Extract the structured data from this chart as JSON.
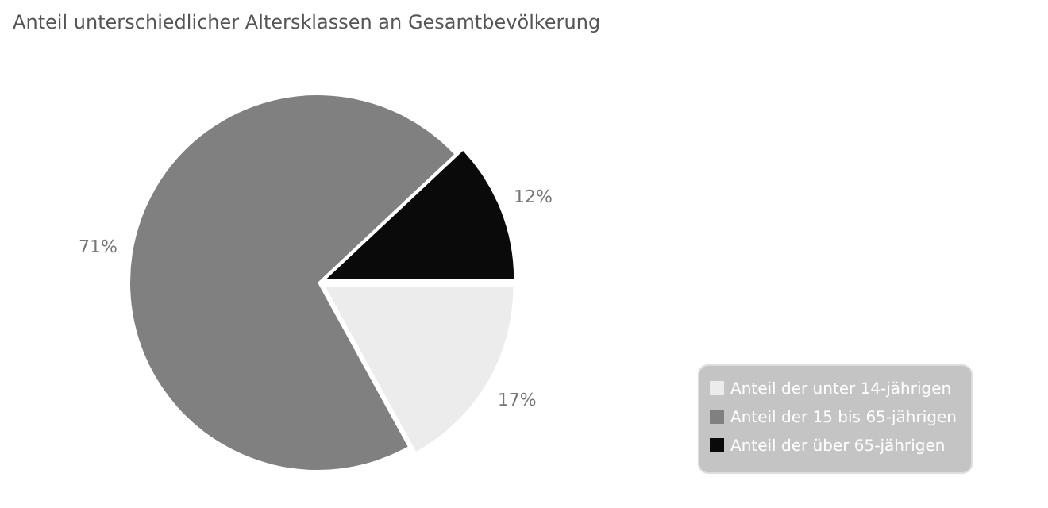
{
  "chart_data": {
    "type": "pie",
    "title": "Anteil unterschiedlicher Altersklassen an Gesamtbevölkerung",
    "categories": [
      "Anteil der unter 14-jährigen",
      "Anteil der 15 bis 65-jährigen",
      "Anteil der über 65-jährigen"
    ],
    "values": [
      17,
      71,
      12
    ],
    "colors": [
      "#ececec",
      "#808080",
      "#0a0a0a"
    ],
    "value_labels": [
      "17%",
      "71%",
      "12%"
    ],
    "legend": "bottom right"
  }
}
